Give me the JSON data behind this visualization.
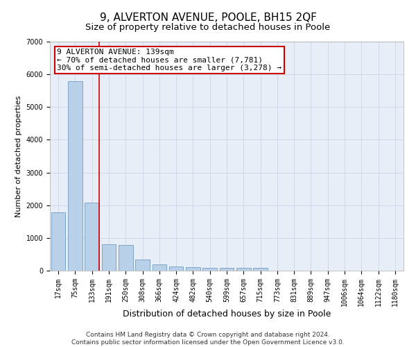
{
  "title1": "9, ALVERTON AVENUE, POOLE, BH15 2QF",
  "title2": "Size of property relative to detached houses in Poole",
  "xlabel": "Distribution of detached houses by size in Poole",
  "ylabel": "Number of detached properties",
  "bar_labels": [
    "17sqm",
    "75sqm",
    "133sqm",
    "191sqm",
    "250sqm",
    "308sqm",
    "366sqm",
    "424sqm",
    "482sqm",
    "540sqm",
    "599sqm",
    "657sqm",
    "715sqm",
    "773sqm",
    "831sqm",
    "889sqm",
    "947sqm",
    "1006sqm",
    "1064sqm",
    "1122sqm",
    "1180sqm"
  ],
  "bar_values": [
    1780,
    5800,
    2080,
    800,
    780,
    340,
    190,
    120,
    105,
    90,
    80,
    80,
    80,
    0,
    0,
    0,
    0,
    0,
    0,
    0,
    0
  ],
  "bar_color": "#b8d0e8",
  "bar_edge_color": "#6090b8",
  "highlight_bar_index": 2,
  "highlight_color": "#cc0000",
  "annotation_box_text": "9 ALVERTON AVENUE: 139sqm\n← 70% of detached houses are smaller (7,781)\n30% of semi-detached houses are larger (3,278) →",
  "ylim": [
    0,
    7000
  ],
  "yticks": [
    0,
    1000,
    2000,
    3000,
    4000,
    5000,
    6000,
    7000
  ],
  "grid_color": "#d0d8e8",
  "background_color": "#e8eef8",
  "footer_text": "Contains HM Land Registry data © Crown copyright and database right 2024.\nContains public sector information licensed under the Open Government Licence v3.0.",
  "title1_fontsize": 11,
  "title2_fontsize": 9.5,
  "xlabel_fontsize": 9,
  "ylabel_fontsize": 8,
  "tick_fontsize": 7,
  "annotation_fontsize": 8,
  "footer_fontsize": 6.5
}
